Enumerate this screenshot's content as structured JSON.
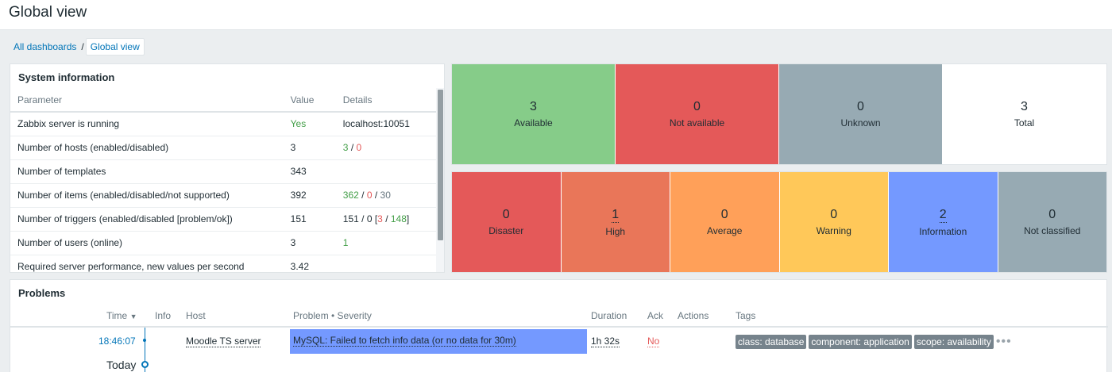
{
  "page_title": "Global view",
  "breadcrumb": {
    "parent": "All dashboards",
    "separator": "/",
    "current": "Global view"
  },
  "system_info": {
    "title": "System information",
    "headers": [
      "Parameter",
      "Value",
      "Details"
    ],
    "rows": [
      {
        "parameter": "Zabbix server is running",
        "value": "Yes",
        "details": "localhost:10051"
      },
      {
        "parameter": "Number of hosts (enabled/disabled)",
        "value": "3",
        "d1": "3",
        "d2": "0"
      },
      {
        "parameter": "Number of templates",
        "value": "343",
        "details": ""
      },
      {
        "parameter": "Number of items (enabled/disabled/not supported)",
        "value": "392",
        "d1": "362",
        "d2": "0",
        "d3": "30"
      },
      {
        "parameter": "Number of triggers (enabled/disabled [problem/ok])",
        "value": "151",
        "d_prefix": "151 / 0 [",
        "d2": "3",
        "d3": "148",
        "d_suffix": "]"
      },
      {
        "parameter": "Number of users (online)",
        "value": "3",
        "d1": "1"
      },
      {
        "parameter": "Required server performance, new values per second",
        "value": "3.42",
        "details": ""
      }
    ]
  },
  "host_availability": [
    {
      "count": "3",
      "label": "Available",
      "color": "#86cc89"
    },
    {
      "count": "0",
      "label": "Not available",
      "color": "#e45959"
    },
    {
      "count": "0",
      "label": "Unknown",
      "color": "#97aab3"
    },
    {
      "count": "3",
      "label": "Total",
      "color": "#ffffff"
    }
  ],
  "severities": [
    {
      "count": "0",
      "label": "Disaster",
      "color": "#e45959"
    },
    {
      "count": "1",
      "label": "High",
      "color": "#e97659"
    },
    {
      "count": "0",
      "label": "Average",
      "color": "#ffa059"
    },
    {
      "count": "0",
      "label": "Warning",
      "color": "#ffc859"
    },
    {
      "count": "2",
      "label": "Information",
      "color": "#7499ff"
    },
    {
      "count": "0",
      "label": "Not classified",
      "color": "#97aab3"
    }
  ],
  "problems": {
    "title": "Problems",
    "headers": {
      "time": "Time",
      "sort_icon": "▼",
      "info": "Info",
      "host": "Host",
      "problem": "Problem • Severity",
      "duration": "Duration",
      "ack": "Ack",
      "actions": "Actions",
      "tags": "Tags"
    },
    "row": {
      "time": "18:46:07",
      "host": "Moodle TS server",
      "problem": "MySQL: Failed to fetch info data (or no data for 30m)",
      "duration": "1h 32s",
      "ack": "No",
      "tags": [
        "class: database",
        "component: application",
        "scope: availability"
      ],
      "more": "•••"
    },
    "today_label": "Today"
  }
}
